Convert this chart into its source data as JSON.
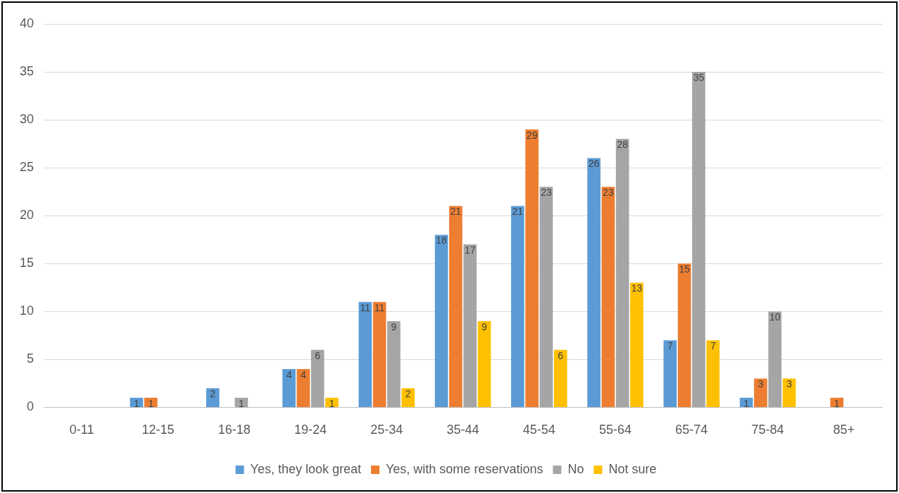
{
  "chart_data": {
    "type": "bar",
    "categories": [
      "0-11",
      "12-15",
      "16-18",
      "19-24",
      "25-34",
      "35-44",
      "45-54",
      "55-64",
      "65-74",
      "75-84",
      "85+"
    ],
    "series": [
      {
        "name": "Yes, they look great",
        "color": "#5b9bd5",
        "values": [
          null,
          1,
          2,
          4,
          11,
          18,
          21,
          26,
          7,
          1,
          null
        ]
      },
      {
        "name": "Yes, with some reservations",
        "color": "#ed7d31",
        "values": [
          null,
          1,
          null,
          4,
          11,
          21,
          29,
          23,
          15,
          3,
          1
        ]
      },
      {
        "name": "No",
        "color": "#a5a5a5",
        "values": [
          null,
          null,
          1,
          6,
          9,
          17,
          23,
          28,
          35,
          10,
          null
        ]
      },
      {
        "name": "Not sure",
        "color": "#ffc000",
        "values": [
          null,
          null,
          null,
          1,
          2,
          9,
          6,
          13,
          7,
          3,
          null
        ]
      }
    ],
    "ylim": [
      0,
      40
    ],
    "yticks": [
      0,
      5,
      10,
      15,
      20,
      25,
      30,
      35,
      40
    ],
    "grid": "y",
    "legend": "bottom",
    "data_labels": true
  }
}
